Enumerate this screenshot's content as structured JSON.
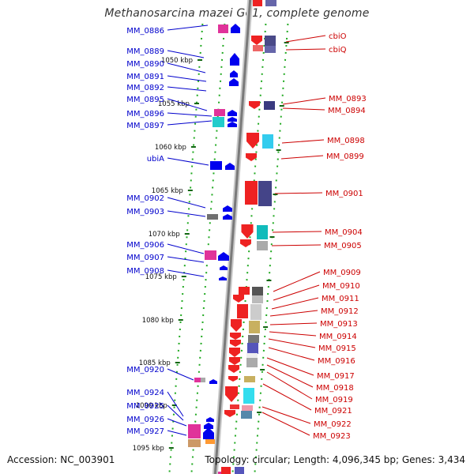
{
  "title": "Methanosarcina mazei Go1, complete genome",
  "accession": "Accession: NC_003901",
  "topology": "Topology: circular; Length: 4,096,345 bp; Genes: 3,434",
  "colors": {
    "left_label": "#0000cc",
    "right_label": "#cc0000",
    "backbone": "#888888",
    "dots": "#22aa22"
  },
  "ticks": [
    "1050 kbp",
    "1055 kbp",
    "1060 kbp",
    "1065 kbp",
    "1070 kbp",
    "1075 kbp",
    "1080 kbp",
    "1085 kbp",
    "1090 kbp",
    "1095 kbp"
  ],
  "left_genes": [
    "MM_0886",
    "MM_0889",
    "MM_0890",
    "MM_0891",
    "MM_0892",
    "MM_0895",
    "MM_0896",
    "MM_0897",
    "ubiA",
    "MM_0902",
    "MM_0903",
    "MM_0906",
    "MM_0907",
    "MM_0908",
    "MM_0920",
    "MM_0924",
    "MM_0925",
    "MM_0926",
    "MM_0927"
  ],
  "right_genes": [
    "cbiO",
    "cbiQ",
    "MM_0893",
    "MM_0894",
    "MM_0898",
    "MM_0899",
    "MM_0901",
    "MM_0904",
    "MM_0905",
    "MM_0909",
    "MM_0910",
    "MM_0911",
    "MM_0912",
    "MM_0913",
    "MM_0914",
    "MM_0915",
    "MM_0916",
    "MM_0917",
    "MM_0918",
    "MM_0919",
    "MM_0921",
    "MM_0922",
    "MM_0923"
  ]
}
